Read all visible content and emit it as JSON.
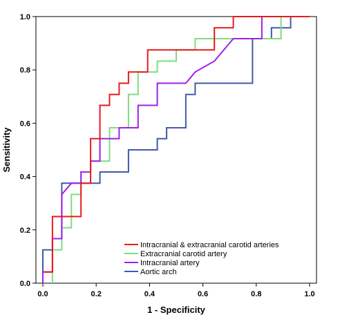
{
  "chart_data": {
    "type": "line",
    "xlabel": "1 - Specificity",
    "ylabel": "Sensitivity",
    "xlim": [
      0,
      1
    ],
    "ylim": [
      0,
      1
    ],
    "xticks": [
      "0.0",
      "0.2",
      "0.4",
      "0.6",
      "0.8",
      "1.0"
    ],
    "yticks": [
      "0.0",
      "0.2",
      "0.4",
      "0.6",
      "0.8",
      "1.0"
    ],
    "grid": false,
    "legend_position": "bottom-right",
    "series": [
      {
        "name": "Intracranial & extracranial carotid arteries",
        "color": "#e8191c",
        "step": true,
        "x": [
          0.0,
          0.036,
          0.036,
          0.143,
          0.143,
          0.179,
          0.179,
          0.214,
          0.214,
          0.25,
          0.25,
          0.286,
          0.286,
          0.321,
          0.321,
          0.357,
          0.357,
          0.393,
          0.393,
          0.643,
          0.643,
          0.714,
          0.714,
          1.0
        ],
        "y": [
          0.042,
          0.042,
          0.25,
          0.25,
          0.375,
          0.375,
          0.542,
          0.542,
          0.667,
          0.667,
          0.708,
          0.708,
          0.75,
          0.75,
          0.792,
          0.792,
          0.792,
          0.792,
          0.875,
          0.875,
          0.958,
          0.958,
          1.0,
          1.0
        ]
      },
      {
        "name": "Extracranial carotid artery",
        "color": "#7fdc7f",
        "step": true,
        "x": [
          0.036,
          0.036,
          0.071,
          0.071,
          0.107,
          0.107,
          0.143,
          0.143,
          0.179,
          0.179,
          0.25,
          0.25,
          0.321,
          0.321,
          0.357,
          0.357,
          0.429,
          0.429,
          0.5,
          0.5,
          0.571,
          0.571,
          0.893,
          0.893,
          1.0
        ],
        "y": [
          0.0,
          0.125,
          0.125,
          0.208,
          0.208,
          0.333,
          0.333,
          0.417,
          0.417,
          0.458,
          0.458,
          0.583,
          0.583,
          0.708,
          0.708,
          0.792,
          0.792,
          0.833,
          0.833,
          0.875,
          0.875,
          0.917,
          0.917,
          1.0,
          1.0
        ]
      },
      {
        "name": "Intracranial artery",
        "color": "#a01fe6",
        "step": true,
        "x": [
          0.0,
          0.0,
          0.036,
          0.036,
          0.071,
          0.071,
          0.107,
          0.107,
          0.143,
          0.143,
          0.179,
          0.179,
          0.214,
          0.214,
          0.286,
          0.286,
          0.357,
          0.357,
          0.429,
          0.429,
          0.536,
          0.571,
          0.643,
          0.714,
          0.786,
          0.821,
          0.821,
          1.0
        ],
        "y": [
          0.0,
          0.042,
          0.042,
          0.167,
          0.167,
          0.333,
          0.375,
          0.375,
          0.375,
          0.417,
          0.417,
          0.458,
          0.458,
          0.542,
          0.542,
          0.583,
          0.583,
          0.667,
          0.667,
          0.75,
          0.75,
          0.792,
          0.833,
          0.917,
          0.917,
          0.917,
          1.0,
          1.0
        ]
      },
      {
        "name": "Aortic arch",
        "color": "#3f5aa8",
        "step": true,
        "x": [
          0.0,
          0.0,
          0.036,
          0.036,
          0.071,
          0.071,
          0.214,
          0.214,
          0.321,
          0.321,
          0.429,
          0.429,
          0.464,
          0.464,
          0.536,
          0.536,
          0.571,
          0.571,
          0.786,
          0.786,
          0.857,
          0.857,
          0.929,
          0.929,
          1.0
        ],
        "y": [
          0.0,
          0.125,
          0.125,
          0.167,
          0.167,
          0.375,
          0.375,
          0.417,
          0.417,
          0.5,
          0.5,
          0.542,
          0.542,
          0.583,
          0.583,
          0.708,
          0.708,
          0.75,
          0.75,
          0.917,
          0.917,
          0.958,
          0.958,
          1.0,
          1.0
        ]
      }
    ]
  }
}
